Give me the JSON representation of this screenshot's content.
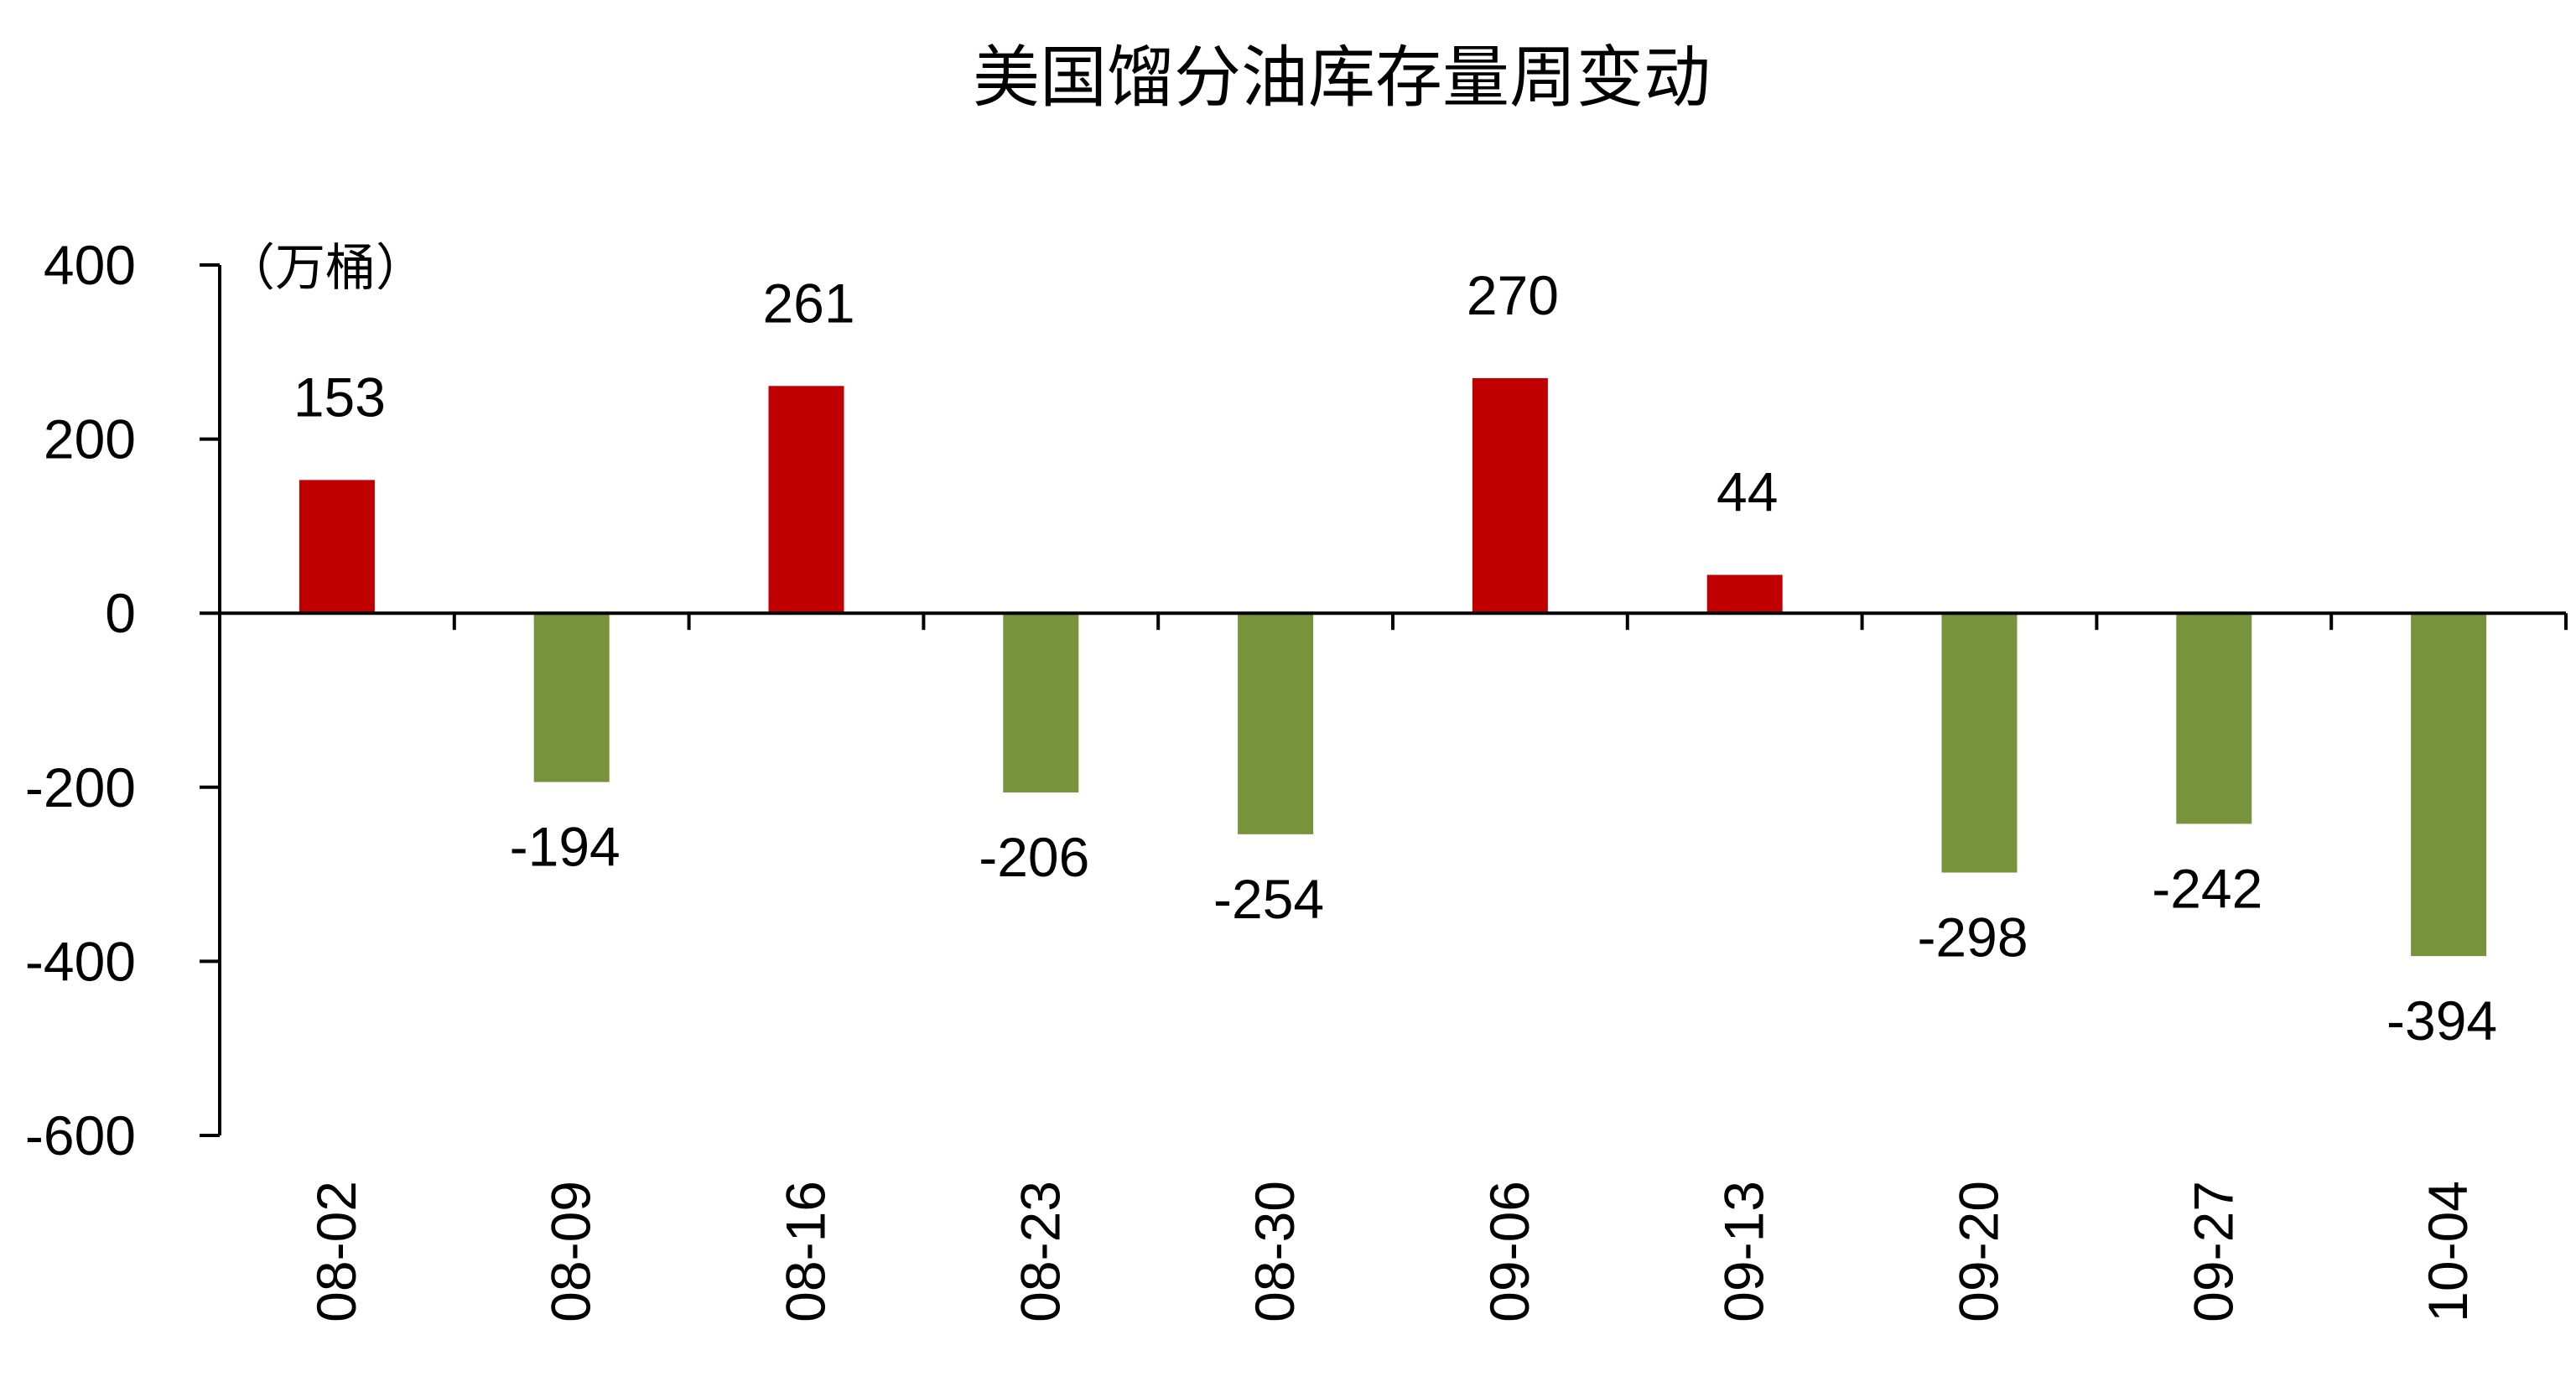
{
  "chart_data": {
    "type": "bar",
    "title": "美国馏分油库存量周变动",
    "unit_label": "（万桶）",
    "categories": [
      "08-02",
      "08-09",
      "08-16",
      "08-23",
      "08-30",
      "09-06",
      "09-13",
      "09-20",
      "09-27",
      "10-04"
    ],
    "values": [
      153,
      -194,
      261,
      -206,
      -254,
      270,
      44,
      -298,
      -242,
      -394
    ],
    "data_labels": [
      "153",
      "-194",
      "261",
      "-206",
      "-254",
      "270",
      "44",
      "-298",
      "-242",
      "-394"
    ],
    "ylim": [
      -600,
      400
    ],
    "yticks": [
      400,
      200,
      0,
      -200,
      -400,
      -600
    ],
    "ytick_labels": [
      "400",
      "200",
      "0",
      "-200",
      "-400",
      "-600"
    ],
    "colors": {
      "positive": "#C00000",
      "negative": "#77933C"
    },
    "grid": false,
    "legend": "none"
  }
}
